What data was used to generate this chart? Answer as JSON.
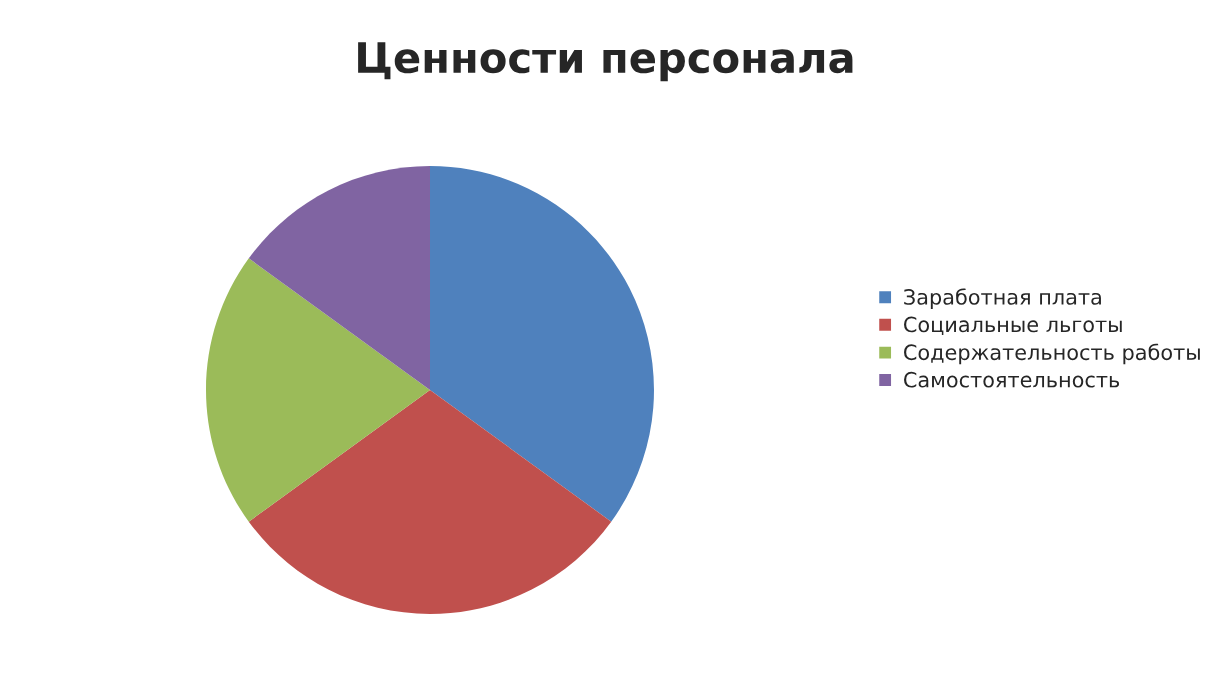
{
  "chart_data": {
    "type": "pie",
    "title": "Ценности персонала",
    "categories": [
      "Заработная плата",
      "Социальные льготы",
      "Содержательность работы",
      "Самостоятельность"
    ],
    "values": [
      35,
      30,
      20,
      15
    ],
    "colors": [
      "#4f81bd",
      "#c0504d",
      "#9bbb59",
      "#8064a2"
    ],
    "legend": "right"
  }
}
